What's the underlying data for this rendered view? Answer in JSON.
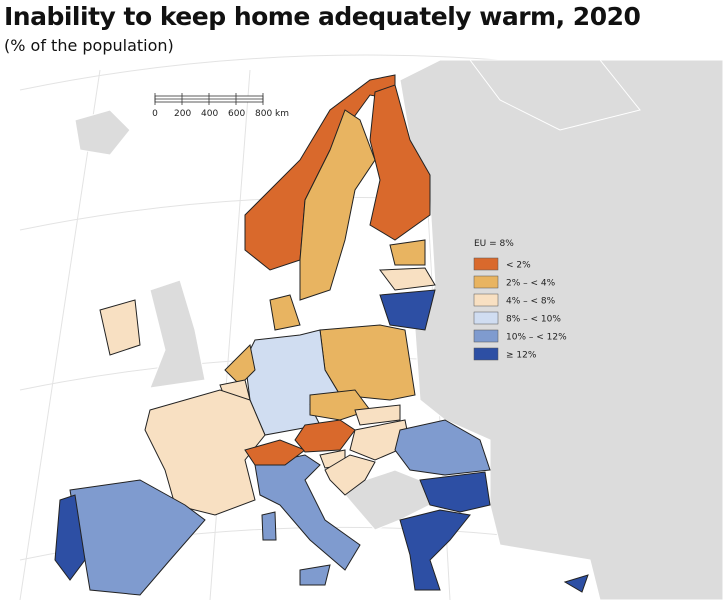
{
  "header": {
    "title": "Inability to keep home adequately warm, 2020",
    "subtitle": "(% of the population)"
  },
  "scale_bar": {
    "labels": [
      "0",
      "200",
      "400",
      "600",
      "800 km"
    ]
  },
  "legend": {
    "title": "EU = 8%",
    "items": [
      {
        "label": "< 2%",
        "color": "#d9692c"
      },
      {
        "label": "2% – < 4%",
        "color": "#e8b461"
      },
      {
        "label": "4% – < 8%",
        "color": "#f8e0c2"
      },
      {
        "label": "8% – < 10%",
        "color": "#d0ddf1"
      },
      {
        "label": "10% – < 12%",
        "color": "#7f9bcf"
      },
      {
        "label": "≥ 12%",
        "color": "#2d4fa4"
      }
    ]
  }
}
